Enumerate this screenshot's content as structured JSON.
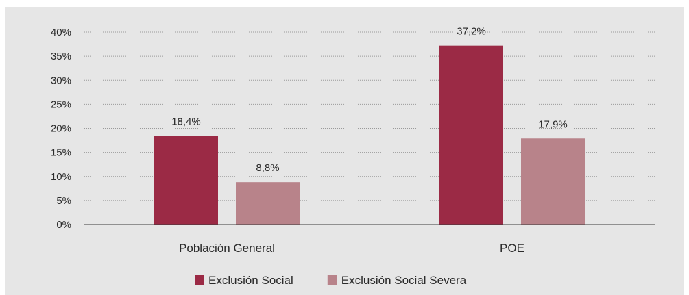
{
  "chart_data": {
    "type": "bar",
    "categories": [
      "Población General",
      "POE"
    ],
    "series": [
      {
        "name": "Exclusión Social",
        "values": [
          18.4,
          37.2
        ],
        "labels": [
          "18,4%",
          "37,2%"
        ],
        "color": "#9b2a45"
      },
      {
        "name": "Exclusión Social Severa",
        "values": [
          8.8,
          17.9
        ],
        "labels": [
          "8,8%",
          "17,9%"
        ],
        "color": "#b8838a"
      }
    ],
    "ylim": [
      0,
      40
    ],
    "yticks": [
      {
        "value": 0,
        "label": "0%"
      },
      {
        "value": 5,
        "label": "5%"
      },
      {
        "value": 10,
        "label": "10%"
      },
      {
        "value": 15,
        "label": "15%"
      },
      {
        "value": 20,
        "label": "20%"
      },
      {
        "value": 25,
        "label": "25%"
      },
      {
        "value": 30,
        "label": "30%"
      },
      {
        "value": 35,
        "label": "35%"
      },
      {
        "value": 40,
        "label": "40%"
      }
    ],
    "grid": true,
    "legend_position": "bottom-center",
    "background": "#e6e6e6"
  }
}
